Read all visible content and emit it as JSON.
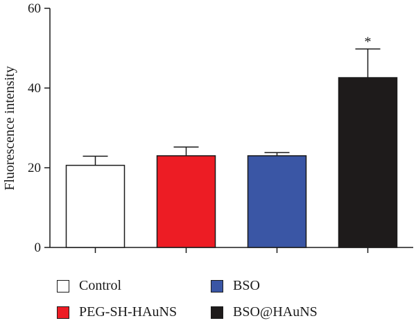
{
  "chart_data": {
    "type": "bar",
    "title": "",
    "xlabel": "",
    "ylabel": "Fluorescence intensity",
    "ylim": [
      0,
      60
    ],
    "yticks": [
      0,
      20,
      40,
      60
    ],
    "grid": false,
    "legend_position": "bottom",
    "categories": [
      "Control",
      "PEG-SH-HAuNS",
      "BSO",
      "BSO@HAuNS"
    ],
    "values": [
      20.6,
      23.0,
      23.0,
      42.6
    ],
    "errors": [
      2.3,
      2.2,
      0.8,
      7.2
    ],
    "colors": [
      "#ffffff",
      "#ed1c24",
      "#3a56a5",
      "#1e1b1b"
    ],
    "annotations": [
      {
        "category": "BSO@HAuNS",
        "text": "*"
      }
    ]
  }
}
